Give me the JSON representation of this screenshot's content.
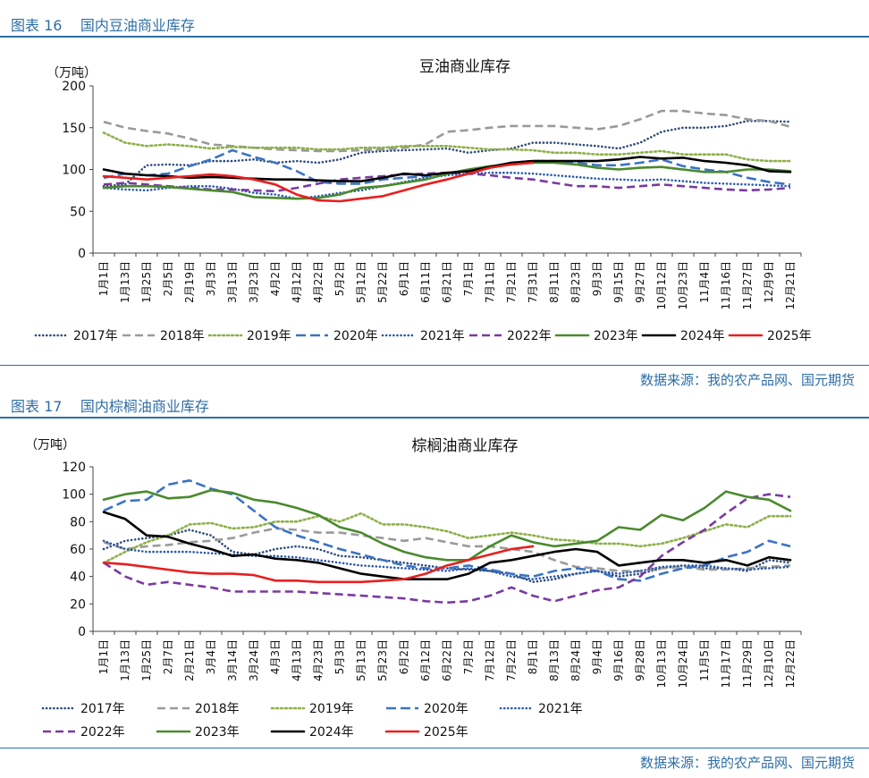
{
  "figures": [
    {
      "label": "图表 16",
      "caption": "国内豆油商业库存",
      "source": "数据来源：我的农产品网、国元期货"
    },
    {
      "label": "图表 17",
      "caption": "国内棕榈油商业库存",
      "source": "数据来源：我的农产品网、国元期货"
    }
  ],
  "chart_data": [
    {
      "type": "line",
      "title": "豆油商业库存",
      "unit_label": "（万吨）",
      "ylim": [
        0,
        200
      ],
      "yticks": [
        0,
        50,
        100,
        150,
        200
      ],
      "x_tick_labels": [
        "1月1日",
        "1月13日",
        "1月25日",
        "2月5日",
        "2月19日",
        "3月3日",
        "3月13日",
        "3月23日",
        "4月2日",
        "4月12日",
        "4月22日",
        "5月2日",
        "5月12日",
        "5月22日",
        "6月1日",
        "6月11日",
        "6月21日",
        "7月1日",
        "7月11日",
        "7月21日",
        "7月31日",
        "8月11日",
        "8月23日",
        "9月3日",
        "9月15日",
        "9月27日",
        "10月12日",
        "10月23日",
        "11月4日",
        "11月16日",
        "11月27日",
        "12月9日",
        "12月21日"
      ],
      "legend_rows": [
        [
          "2017年",
          "2018年",
          "2019年",
          "2020年",
          "2021年",
          "2022年",
          "2023年",
          "2024年",
          "2025年"
        ]
      ],
      "series": [
        {
          "name": "2017年",
          "color": "#2f4a7a",
          "dash": "dot-dense",
          "values": [
            80,
            82,
            105,
            106,
            105,
            110,
            110,
            112,
            108,
            110,
            108,
            112,
            120,
            122,
            123,
            124,
            125,
            120,
            123,
            125,
            132,
            132,
            130,
            128,
            125,
            132,
            145,
            150,
            150,
            152,
            158,
            158,
            157
          ]
        },
        {
          "name": "2018年",
          "color": "#9a9a9a",
          "dash": "dash",
          "values": [
            157,
            150,
            146,
            143,
            137,
            130,
            128,
            126,
            124,
            123,
            122,
            122,
            123,
            124,
            126,
            130,
            145,
            147,
            150,
            152,
            152,
            152,
            150,
            148,
            152,
            160,
            170,
            170,
            167,
            165,
            160,
            158,
            151
          ]
        },
        {
          "name": "2019年",
          "color": "#8fb04a",
          "dash": "dot",
          "values": [
            144,
            132,
            128,
            130,
            128,
            125,
            127,
            126,
            126,
            126,
            124,
            124,
            126,
            126,
            128,
            128,
            128,
            126,
            124,
            124,
            123,
            120,
            120,
            118,
            118,
            120,
            122,
            118,
            118,
            118,
            112,
            110,
            110
          ]
        },
        {
          "name": "2020年",
          "color": "#3a74c4",
          "dash": "dash-long",
          "values": [
            90,
            95,
            93,
            95,
            104,
            112,
            123,
            115,
            108,
            98,
            85,
            83,
            83,
            88,
            90,
            92,
            95,
            98,
            103,
            108,
            110,
            110,
            108,
            105,
            105,
            108,
            112,
            104,
            100,
            97,
            90,
            85,
            82
          ]
        },
        {
          "name": "2021年",
          "color": "#2a5aa8",
          "dash": "dot-dense",
          "values": [
            78,
            76,
            75,
            78,
            80,
            80,
            77,
            72,
            70,
            65,
            68,
            72,
            75,
            80,
            85,
            90,
            93,
            95,
            96,
            96,
            95,
            93,
            91,
            89,
            88,
            87,
            88,
            86,
            84,
            83,
            82,
            81,
            80
          ]
        },
        {
          "name": "2022年",
          "color": "#7a3aa0",
          "dash": "dash",
          "values": [
            82,
            84,
            82,
            80,
            78,
            76,
            76,
            75,
            74,
            78,
            83,
            88,
            90,
            92,
            94,
            95,
            96,
            95,
            93,
            90,
            88,
            84,
            80,
            80,
            78,
            80,
            82,
            80,
            78,
            76,
            75,
            76,
            78
          ]
        },
        {
          "name": "2023年",
          "color": "#4a8a2e",
          "dash": "solid",
          "values": [
            78,
            80,
            80,
            79,
            77,
            75,
            73,
            67,
            66,
            65,
            66,
            70,
            78,
            80,
            84,
            88,
            95,
            100,
            104,
            106,
            108,
            108,
            106,
            102,
            100,
            102,
            103,
            100,
            97,
            97,
            100,
            100,
            98
          ]
        },
        {
          "name": "2024年",
          "color": "#000000",
          "dash": "solid",
          "values": [
            100,
            95,
            93,
            92,
            90,
            91,
            90,
            89,
            88,
            88,
            87,
            86,
            86,
            90,
            95,
            93,
            96,
            98,
            103,
            108,
            110,
            110,
            110,
            110,
            112,
            115,
            113,
            114,
            110,
            108,
            105,
            98,
            97
          ]
        },
        {
          "name": "2025年",
          "color": "#e81f1f",
          "dash": "solid",
          "values": [
            92,
            90,
            88,
            90,
            92,
            94,
            92,
            88,
            82,
            70,
            63,
            62,
            65,
            68,
            75,
            82,
            88,
            95,
            102,
            106,
            108,
            null,
            null,
            null,
            null,
            null,
            null,
            null,
            null,
            null,
            null,
            null,
            null
          ]
        }
      ]
    },
    {
      "type": "line",
      "title": "棕榈油商业库存",
      "unit_label": "（万吨）",
      "ylim": [
        0,
        120
      ],
      "yticks": [
        0,
        20,
        40,
        60,
        80,
        100,
        120
      ],
      "x_tick_labels": [
        "1月1日",
        "1月13日",
        "1月25日",
        "2月7日",
        "2月21日",
        "3月4日",
        "3月14日",
        "3月24日",
        "4月3日",
        "4月13日",
        "4月23日",
        "5月3日",
        "5月13日",
        "5月23日",
        "6月2日",
        "6月12日",
        "6月22日",
        "7月2日",
        "7月12日",
        "7月22日",
        "8月1日",
        "8月13日",
        "8月24日",
        "9月4日",
        "9月16日",
        "9月28日",
        "10月13日",
        "10月24日",
        "11月5日",
        "11月17日",
        "11月29日",
        "12月10日",
        "12月22日"
      ],
      "legend_rows": [
        [
          "2017年",
          "2018年",
          "2019年",
          "2020年",
          "2021年"
        ],
        [
          "2022年",
          "2023年",
          "2024年",
          "2025年"
        ]
      ],
      "series": [
        {
          "name": "2017年",
          "color": "#2f4a7a",
          "dash": "dot-dense",
          "values": [
            60,
            66,
            68,
            70,
            74,
            70,
            58,
            56,
            60,
            62,
            60,
            55,
            54,
            52,
            50,
            48,
            46,
            45,
            44,
            42,
            36,
            38,
            42,
            44,
            40,
            42,
            46,
            48,
            46,
            46,
            44,
            52,
            50
          ]
        },
        {
          "name": "2018年",
          "color": "#9a9a9a",
          "dash": "dash",
          "values": [
            65,
            60,
            62,
            63,
            65,
            66,
            68,
            72,
            75,
            74,
            72,
            72,
            70,
            68,
            66,
            68,
            65,
            62,
            62,
            60,
            58,
            52,
            47,
            46,
            44,
            44,
            46,
            47,
            45,
            45,
            46,
            47,
            48
          ]
        },
        {
          "name": "2019年",
          "color": "#8fb04a",
          "dash": "dot",
          "values": [
            50,
            58,
            65,
            70,
            78,
            79,
            75,
            76,
            80,
            80,
            84,
            80,
            86,
            78,
            78,
            76,
            73,
            68,
            70,
            72,
            70,
            67,
            66,
            64,
            64,
            62,
            64,
            68,
            73,
            78,
            76,
            84,
            84
          ]
        },
        {
          "name": "2020年",
          "color": "#3a74c4",
          "dash": "dash-long",
          "values": [
            88,
            95,
            96,
            107,
            110,
            104,
            100,
            88,
            76,
            70,
            65,
            60,
            56,
            52,
            48,
            46,
            46,
            48,
            45,
            42,
            40,
            44,
            46,
            44,
            38,
            37,
            42,
            46,
            48,
            54,
            58,
            66,
            62
          ]
        },
        {
          "name": "2021年",
          "color": "#2a5aa8",
          "dash": "dot-dense",
          "values": [
            66,
            60,
            58,
            58,
            58,
            57,
            56,
            55,
            55,
            54,
            52,
            50,
            48,
            47,
            46,
            45,
            44,
            46,
            44,
            40,
            38,
            40,
            42,
            44,
            42,
            44,
            47,
            48,
            48,
            46,
            45,
            46,
            47
          ]
        },
        {
          "name": "2022年",
          "color": "#7a3aa0",
          "dash": "dash",
          "values": [
            50,
            40,
            34,
            36,
            34,
            32,
            29,
            29,
            29,
            29,
            28,
            27,
            26,
            25,
            24,
            22,
            21,
            22,
            26,
            32,
            26,
            22,
            26,
            30,
            32,
            40,
            55,
            65,
            74,
            86,
            97,
            100,
            98
          ]
        },
        {
          "name": "2023年",
          "color": "#4a8a2e",
          "dash": "solid",
          "values": [
            96,
            100,
            102,
            97,
            98,
            103,
            101,
            96,
            94,
            90,
            85,
            76,
            72,
            64,
            58,
            54,
            52,
            52,
            62,
            70,
            65,
            62,
            64,
            66,
            76,
            74,
            85,
            81,
            90,
            102,
            98,
            96,
            88
          ]
        },
        {
          "name": "2024年",
          "color": "#000000",
          "dash": "solid",
          "values": [
            87,
            82,
            70,
            69,
            64,
            60,
            55,
            56,
            53,
            52,
            50,
            46,
            42,
            40,
            38,
            38,
            38,
            42,
            50,
            52,
            55,
            58,
            60,
            58,
            48,
            50,
            52,
            52,
            50,
            52,
            48,
            54,
            52
          ]
        },
        {
          "name": "2025年",
          "color": "#e81f1f",
          "dash": "solid",
          "values": [
            50,
            49,
            47,
            45,
            43,
            42,
            42,
            41,
            37,
            37,
            36,
            36,
            36,
            37,
            38,
            42,
            48,
            52,
            56,
            60,
            62,
            null,
            null,
            null,
            null,
            null,
            null,
            null,
            null,
            null,
            null,
            null,
            null
          ]
        }
      ]
    }
  ]
}
